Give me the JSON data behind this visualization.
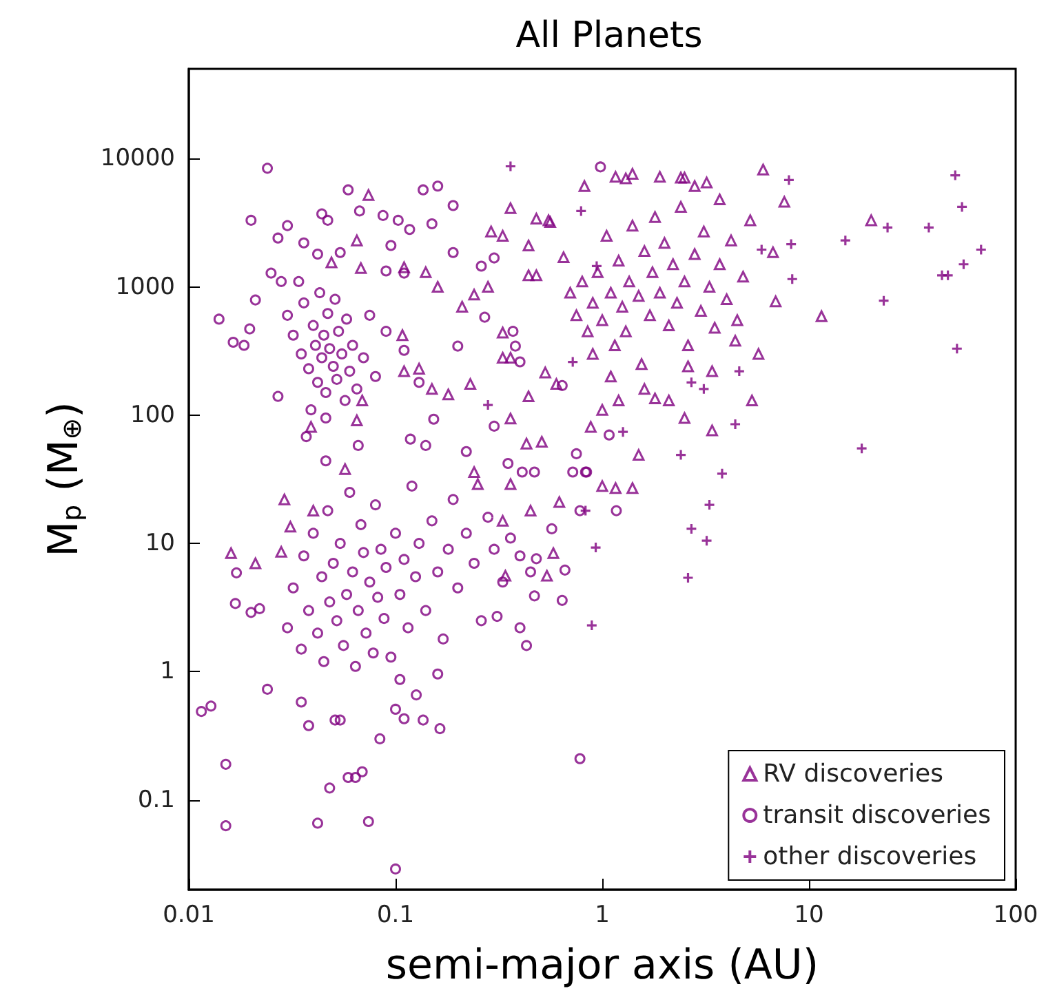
{
  "chart_data": {
    "type": "scatter",
    "title": "All Planets",
    "xlabel": "semi-major axis (AU)",
    "ylabel": "M$_{p}$ (M$_{⊕}$)",
    "log": "xy",
    "xlim": [
      0.01,
      100
    ],
    "xticks": [
      0.01,
      0.1,
      1,
      10,
      100
    ],
    "ylim": [
      0.02,
      50000
    ],
    "yticks": [
      0.1,
      1,
      10,
      100,
      1000,
      10000
    ],
    "grid": false,
    "legend": "bottom right",
    "series": [
      {
        "name": "RV discoveries",
        "color": "#800080",
        "marker": "triangle",
        "x": [
          6.0,
          0.82,
          1.16,
          1.3,
          1.4,
          1.9,
          2.4,
          2.5,
          2.8,
          3.2,
          3.7,
          7.6,
          20,
          11.5,
          6.7,
          6.9,
          5.7,
          5.3,
          3.4,
          2.5,
          1.5,
          1.0,
          1.16,
          1.4,
          1.0,
          1.2,
          1.8,
          2.1,
          0.88,
          0.6,
          0.62,
          0.074,
          0.065,
          0.049,
          0.068,
          0.11,
          0.14,
          0.16,
          0.21,
          0.24,
          0.28,
          0.36,
          0.29,
          0.33,
          0.44,
          0.48,
          0.56,
          0.44,
          0.48,
          0.33,
          0.33,
          0.36,
          0.53,
          0.44,
          0.23,
          0.18,
          0.15,
          0.13,
          0.11,
          0.108,
          0.069,
          0.065,
          0.039,
          0.057,
          0.36,
          0.43,
          0.51,
          0.25,
          0.36,
          0.029,
          0.04,
          0.031,
          0.016,
          0.021,
          0.028,
          0.24,
          0.54,
          0.58,
          0.34,
          0.45,
          0.33,
          0.7,
          0.75,
          0.8,
          0.85,
          0.9,
          0.95,
          1.0,
          1.05,
          1.1,
          1.15,
          1.2,
          1.25,
          1.3,
          1.35,
          1.4,
          1.5,
          1.55,
          1.6,
          1.7,
          1.75,
          1.8,
          1.9,
          2.0,
          2.1,
          2.2,
          2.3,
          2.4,
          2.5,
          2.6,
          2.8,
          3.0,
          3.1,
          3.3,
          3.5,
          3.7,
          4.0,
          4.2,
          4.5,
          4.8,
          5.2,
          0.65,
          0.55,
          1.1,
          1.6,
          2.6,
          3.4,
          0.9,
          4.4
        ],
        "values": [
          8200,
          6100,
          7200,
          7000,
          7600,
          7200,
          7100,
          7100,
          6100,
          6500,
          4800,
          4600,
          3300,
          590,
          1860,
          770,
          300,
          130,
          76,
          95,
          49,
          28,
          27,
          27,
          110,
          130,
          135,
          130,
          81,
          175,
          21,
          5200,
          2300,
          1550,
          1400,
          1420,
          1300,
          1000,
          700,
          870,
          1000,
          4100,
          2700,
          2500,
          2100,
          3400,
          3200,
          1230,
          1230,
          440,
          280,
          280,
          215,
          140,
          175,
          145,
          160,
          230,
          220,
          420,
          130,
          91,
          81,
          38,
          94,
          60,
          62,
          29,
          29,
          22,
          18,
          13.5,
          8.4,
          7,
          8.6,
          36,
          5.6,
          8.4,
          5.6,
          18,
          15,
          900,
          600,
          1100,
          450,
          750,
          1300,
          550,
          2500,
          900,
          350,
          1600,
          700,
          450,
          1100,
          3000,
          850,
          250,
          1900,
          600,
          1300,
          3500,
          900,
          2200,
          500,
          1500,
          750,
          4200,
          1100,
          350,
          1800,
          650,
          2700,
          1000,
          480,
          1500,
          800,
          2300,
          550,
          1200,
          3300,
          1700,
          3300,
          200,
          160,
          240,
          220,
          300,
          380
        ]
      },
      {
        "name": "transit discoveries",
        "color": "#800080",
        "marker": "circle",
        "x": [
          0.98,
          0.024,
          0.059,
          0.136,
          0.16,
          0.19,
          0.02,
          0.03,
          0.027,
          0.036,
          0.044,
          0.047,
          0.067,
          0.087,
          0.103,
          0.15,
          0.095,
          0.117,
          0.042,
          0.054,
          0.19,
          0.26,
          0.3,
          0.025,
          0.028,
          0.09,
          0.11,
          0.021,
          0.014,
          0.0164,
          0.0185,
          0.0197,
          0.027,
          0.037,
          0.046,
          0.066,
          0.118,
          0.14,
          0.22,
          0.3,
          0.35,
          0.41,
          0.47,
          0.153,
          0.2,
          0.27,
          0.37,
          0.38,
          0.4,
          0.64,
          1.08,
          0.75,
          0.72,
          0.83,
          0.0115,
          0.0128,
          0.0151,
          0.0151,
          0.017,
          0.0168,
          0.02,
          0.022,
          0.024,
          0.048,
          0.042,
          0.074,
          0.1,
          0.059,
          0.064,
          0.069,
          0.164,
          0.78,
          0.084,
          0.035,
          0.038,
          0.051,
          0.054,
          0.1,
          0.11,
          0.136,
          0.126,
          0.16,
          0.105,
          0.43,
          0.4,
          0.31,
          0.47,
          0.64,
          0.66,
          0.48,
          0.84,
          0.57,
          1.17,
          0.78,
          0.03,
          0.032,
          0.035,
          0.036,
          0.038,
          0.04,
          0.041,
          0.042,
          0.043,
          0.044,
          0.045,
          0.046,
          0.047,
          0.048,
          0.05,
          0.051,
          0.052,
          0.053,
          0.055,
          0.057,
          0.058,
          0.06,
          0.062,
          0.065,
          0.07,
          0.075,
          0.08,
          0.09,
          0.11,
          0.13,
          0.034,
          0.039,
          0.046,
          0.03,
          0.032,
          0.035,
          0.036,
          0.038,
          0.04,
          0.042,
          0.044,
          0.045,
          0.047,
          0.048,
          0.05,
          0.052,
          0.054,
          0.056,
          0.058,
          0.06,
          0.062,
          0.064,
          0.066,
          0.068,
          0.07,
          0.072,
          0.075,
          0.078,
          0.08,
          0.082,
          0.085,
          0.088,
          0.09,
          0.095,
          0.1,
          0.105,
          0.11,
          0.115,
          0.12,
          0.125,
          0.13,
          0.14,
          0.15,
          0.16,
          0.17,
          0.18,
          0.19,
          0.2,
          0.22,
          0.24,
          0.26,
          0.28,
          0.3,
          0.33,
          0.36,
          0.4,
          0.45
        ],
        "values": [
          8600,
          8400,
          5700,
          5700,
          6100,
          4300,
          3300,
          3000,
          2400,
          2200,
          3700,
          3300,
          3900,
          3600,
          3300,
          3100,
          2100,
          2800,
          1800,
          1850,
          1850,
          1450,
          1680,
          1280,
          1100,
          1330,
          1280,
          790,
          560,
          370,
          350,
          470,
          140,
          68,
          44,
          58,
          65,
          58,
          52,
          82,
          42,
          36,
          36,
          93,
          345,
          580,
          450,
          345,
          260,
          170,
          70,
          50,
          36,
          36,
          0.49,
          0.54,
          0.19,
          0.063,
          5.9,
          3.4,
          2.9,
          3.1,
          0.73,
          0.124,
          0.066,
          0.068,
          0.029,
          0.15,
          0.15,
          0.166,
          0.36,
          0.21,
          0.3,
          0.58,
          0.38,
          0.42,
          0.42,
          0.51,
          0.43,
          0.42,
          0.66,
          0.96,
          0.87,
          1.6,
          2.2,
          2.7,
          3.9,
          3.6,
          6.2,
          7.6,
          36,
          13,
          18,
          18,
          600,
          420,
          300,
          750,
          230,
          500,
          350,
          180,
          900,
          280,
          420,
          150,
          620,
          330,
          240,
          800,
          190,
          450,
          300,
          130,
          560,
          220,
          350,
          160,
          280,
          600,
          200,
          450,
          320,
          180,
          1100,
          110,
          95,
          2.2,
          4.5,
          1.5,
          8,
          3,
          12,
          2,
          5.5,
          1.2,
          18,
          3.5,
          7,
          2.5,
          10,
          1.6,
          4,
          25,
          6,
          1.1,
          3,
          14,
          8.5,
          2,
          5,
          1.4,
          20,
          3.8,
          9,
          2.6,
          6.5,
          1.3,
          12,
          4,
          7.5,
          2.2,
          28,
          5.5,
          10,
          3,
          15,
          6,
          1.8,
          9,
          22,
          4.5,
          12,
          7,
          2.5,
          16,
          9,
          5,
          11,
          8,
          6
        ]
      },
      {
        "name": "other discoveries",
        "color": "#800080",
        "marker": "cross",
        "x": [
          51,
          55,
          68,
          56,
          44,
          47,
          38,
          24,
          15,
          23,
          52,
          18,
          8,
          8.2,
          8.3,
          5.9,
          4.4,
          3.8,
          2.4,
          1.26,
          0.72,
          0.79,
          4.6,
          3.1,
          2.7,
          3.3,
          2.7,
          3.2,
          2.6,
          0.93,
          0.89,
          0.83,
          0.36,
          0.28,
          0.94
        ],
        "values": [
          7400,
          4200,
          1950,
          1500,
          1230,
          1230,
          2900,
          2900,
          2300,
          780,
          330,
          55,
          6800,
          2150,
          1150,
          1950,
          85,
          35,
          49,
          74,
          260,
          3900,
          220,
          160,
          180,
          20,
          13,
          10.5,
          5.4,
          9.3,
          2.3,
          18,
          8700,
          120,
          1450
        ]
      }
    ]
  }
}
